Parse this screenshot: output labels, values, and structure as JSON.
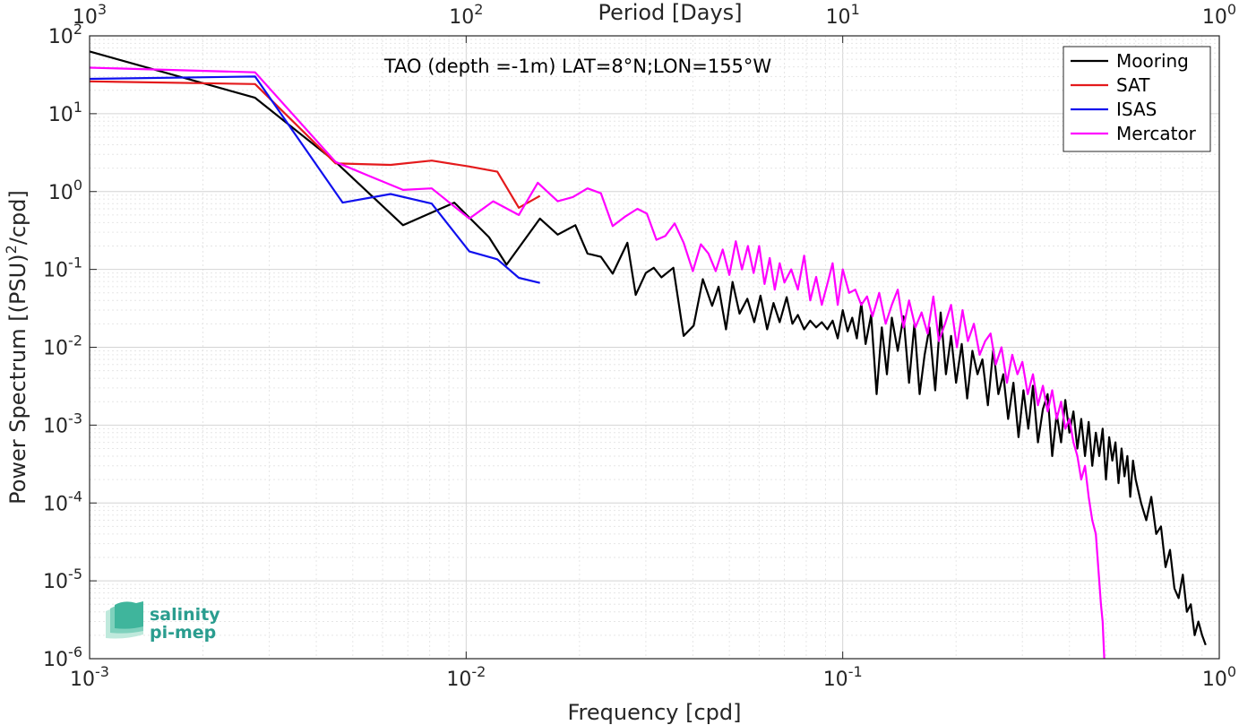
{
  "chart_data": {
    "type": "line",
    "title": "TAO (depth =-1m) LAT=8°N;LON=155°W",
    "xlabel": "Frequency [cpd]",
    "ylabel": "Power Spectrum [(PSU)^2/cpd]",
    "top_xlabel": "Period [Days]",
    "xscale": "log",
    "yscale": "log",
    "xlim": [
      0.001,
      1
    ],
    "ylim": [
      1e-06,
      100
    ],
    "grid": true,
    "legend_position": "top-right",
    "x_ticks": [
      {
        "value": 0.001,
        "base": "10",
        "exp": "-3"
      },
      {
        "value": 0.01,
        "base": "10",
        "exp": "-2"
      },
      {
        "value": 0.1,
        "base": "10",
        "exp": "-1"
      },
      {
        "value": 1,
        "base": "10",
        "exp": "0"
      }
    ],
    "top_x_ticks": [
      {
        "value": 0.001,
        "base": "10",
        "exp": "3"
      },
      {
        "value": 0.01,
        "base": "10",
        "exp": "2"
      },
      {
        "value": 0.1,
        "base": "10",
        "exp": "1"
      },
      {
        "value": 1,
        "base": "10",
        "exp": "0"
      }
    ],
    "y_ticks": [
      {
        "value": 100,
        "base": "10",
        "exp": "2"
      },
      {
        "value": 10,
        "base": "10",
        "exp": "1"
      },
      {
        "value": 1,
        "base": "10",
        "exp": "0"
      },
      {
        "value": 0.1,
        "base": "10",
        "exp": "-1"
      },
      {
        "value": 0.01,
        "base": "10",
        "exp": "-2"
      },
      {
        "value": 0.001,
        "base": "10",
        "exp": "-3"
      },
      {
        "value": 0.0001,
        "base": "10",
        "exp": "-4"
      },
      {
        "value": 1e-05,
        "base": "10",
        "exp": "-5"
      },
      {
        "value": 1e-06,
        "base": "10",
        "exp": "-6"
      }
    ],
    "series": [
      {
        "name": "Mooring",
        "color": "#000000",
        "x": [
          0.001,
          0.00275,
          0.0045,
          0.0068,
          0.0093,
          0.0115,
          0.0128,
          0.0157,
          0.0175,
          0.0195,
          0.021,
          0.0228,
          0.0245,
          0.0268,
          0.0282,
          0.03,
          0.0315,
          0.033,
          0.0355,
          0.0378,
          0.0402,
          0.0425,
          0.045,
          0.0468,
          0.049,
          0.051,
          0.0532,
          0.0558,
          0.0582,
          0.0605,
          0.063,
          0.0655,
          0.068,
          0.071,
          0.0735,
          0.076,
          0.079,
          0.082,
          0.085,
          0.088,
          0.091,
          0.094,
          0.097,
          0.1,
          0.103,
          0.106,
          0.109,
          0.112,
          0.115,
          0.119,
          0.123,
          0.127,
          0.131,
          0.135,
          0.14,
          0.145,
          0.15,
          0.155,
          0.16,
          0.165,
          0.17,
          0.176,
          0.182,
          0.188,
          0.194,
          0.2,
          0.207,
          0.214,
          0.221,
          0.228,
          0.235,
          0.243,
          0.251,
          0.259,
          0.267,
          0.275,
          0.284,
          0.293,
          0.302,
          0.311,
          0.32,
          0.33,
          0.34,
          0.35,
          0.36,
          0.37,
          0.38,
          0.39,
          0.4,
          0.41,
          0.42,
          0.43,
          0.44,
          0.45,
          0.46,
          0.47,
          0.48,
          0.49,
          0.5,
          0.51,
          0.52,
          0.53,
          0.54,
          0.55,
          0.56,
          0.57,
          0.58,
          0.59,
          0.6,
          0.62,
          0.64,
          0.66,
          0.68,
          0.7,
          0.72,
          0.74,
          0.76,
          0.78,
          0.8,
          0.82,
          0.84,
          0.86,
          0.88,
          0.9,
          0.92
        ],
        "y": [
          63,
          16,
          2.4,
          0.37,
          0.72,
          0.26,
          0.115,
          0.45,
          0.28,
          0.37,
          0.16,
          0.145,
          0.088,
          0.22,
          0.047,
          0.09,
          0.105,
          0.079,
          0.105,
          0.014,
          0.019,
          0.075,
          0.034,
          0.06,
          0.017,
          0.069,
          0.027,
          0.042,
          0.021,
          0.046,
          0.017,
          0.037,
          0.021,
          0.044,
          0.02,
          0.026,
          0.017,
          0.022,
          0.018,
          0.021,
          0.017,
          0.022,
          0.013,
          0.03,
          0.016,
          0.024,
          0.013,
          0.037,
          0.011,
          0.026,
          0.0025,
          0.018,
          0.0045,
          0.024,
          0.009,
          0.025,
          0.0035,
          0.02,
          0.0025,
          0.008,
          0.018,
          0.0028,
          0.028,
          0.0045,
          0.014,
          0.0035,
          0.011,
          0.0022,
          0.009,
          0.0045,
          0.007,
          0.0018,
          0.0095,
          0.0025,
          0.0045,
          0.0012,
          0.0035,
          0.0007,
          0.0028,
          0.0009,
          0.0032,
          0.0006,
          0.0016,
          0.0025,
          0.0004,
          0.0014,
          0.0006,
          0.0021,
          0.0008,
          0.0015,
          0.0005,
          0.0012,
          0.0004,
          0.0011,
          0.0003,
          0.0008,
          0.0004,
          0.0009,
          0.0002,
          0.0007,
          0.00035,
          0.0006,
          0.00018,
          0.0005,
          0.00022,
          0.0004,
          0.00012,
          0.00035,
          0.0002,
          0.0001,
          6e-05,
          0.00012,
          4e-05,
          5e-05,
          1.5e-05,
          2.5e-05,
          8e-06,
          6e-06,
          1.2e-05,
          4e-06,
          5e-06,
          2e-06,
          3e-06,
          2e-06,
          1.5e-06
        ]
      },
      {
        "name": "SAT",
        "color": "#e41a1c",
        "x": [
          0.001,
          0.00275,
          0.0045,
          0.0063,
          0.0081,
          0.0102,
          0.0121,
          0.0138,
          0.0157
        ],
        "y": [
          26,
          24,
          2.3,
          2.2,
          2.5,
          2.1,
          1.8,
          0.62,
          0.88
        ]
      },
      {
        "name": "ISAS",
        "color": "#1010ee",
        "x": [
          0.001,
          0.00275,
          0.0047,
          0.0063,
          0.0081,
          0.0102,
          0.0121,
          0.0138,
          0.0157
        ],
        "y": [
          28,
          30,
          0.72,
          0.93,
          0.7,
          0.17,
          0.135,
          0.078,
          0.067
        ]
      },
      {
        "name": "Mercator",
        "color": "#ff00ff",
        "x": [
          0.001,
          0.00275,
          0.0045,
          0.0055,
          0.0068,
          0.0081,
          0.0102,
          0.0118,
          0.0138,
          0.0155,
          0.0175,
          0.0192,
          0.021,
          0.0228,
          0.0245,
          0.0265,
          0.0285,
          0.0302,
          0.032,
          0.0338,
          0.0358,
          0.0378,
          0.04,
          0.042,
          0.044,
          0.046,
          0.048,
          0.05,
          0.052,
          0.054,
          0.056,
          0.058,
          0.06,
          0.062,
          0.064,
          0.066,
          0.068,
          0.07,
          0.073,
          0.076,
          0.079,
          0.082,
          0.085,
          0.088,
          0.091,
          0.094,
          0.097,
          0.1,
          0.104,
          0.108,
          0.112,
          0.116,
          0.12,
          0.125,
          0.13,
          0.135,
          0.14,
          0.145,
          0.15,
          0.156,
          0.162,
          0.168,
          0.174,
          0.18,
          0.187,
          0.194,
          0.201,
          0.208,
          0.215,
          0.223,
          0.231,
          0.239,
          0.247,
          0.255,
          0.264,
          0.273,
          0.282,
          0.291,
          0.3,
          0.31,
          0.32,
          0.33,
          0.34,
          0.35,
          0.36,
          0.37,
          0.38,
          0.39,
          0.4,
          0.41,
          0.42,
          0.43,
          0.44,
          0.45,
          0.46,
          0.47,
          0.48,
          0.485,
          0.49,
          0.495
        ],
        "y": [
          39,
          34,
          2.4,
          1.6,
          1.05,
          1.1,
          0.45,
          0.75,
          0.5,
          1.3,
          0.75,
          0.85,
          1.1,
          0.95,
          0.36,
          0.48,
          0.6,
          0.52,
          0.24,
          0.27,
          0.39,
          0.22,
          0.095,
          0.21,
          0.16,
          0.095,
          0.18,
          0.085,
          0.23,
          0.1,
          0.2,
          0.09,
          0.2,
          0.065,
          0.14,
          0.055,
          0.12,
          0.068,
          0.1,
          0.055,
          0.15,
          0.04,
          0.08,
          0.035,
          0.065,
          0.12,
          0.035,
          0.1,
          0.05,
          0.055,
          0.035,
          0.045,
          0.025,
          0.05,
          0.02,
          0.035,
          0.055,
          0.018,
          0.04,
          0.018,
          0.028,
          0.015,
          0.045,
          0.012,
          0.02,
          0.035,
          0.01,
          0.03,
          0.012,
          0.02,
          0.008,
          0.012,
          0.015,
          0.006,
          0.01,
          0.0035,
          0.008,
          0.0045,
          0.0065,
          0.0025,
          0.0045,
          0.0018,
          0.0032,
          0.0015,
          0.0028,
          0.0012,
          0.002,
          0.0009,
          0.0012,
          0.0006,
          0.0004,
          0.0002,
          0.0003,
          0.00012,
          6e-05,
          4e-05,
          1e-05,
          5e-06,
          3e-06,
          1e-06
        ]
      }
    ]
  },
  "logo": {
    "line1": "salinity",
    "line2": "pi-mep"
  }
}
